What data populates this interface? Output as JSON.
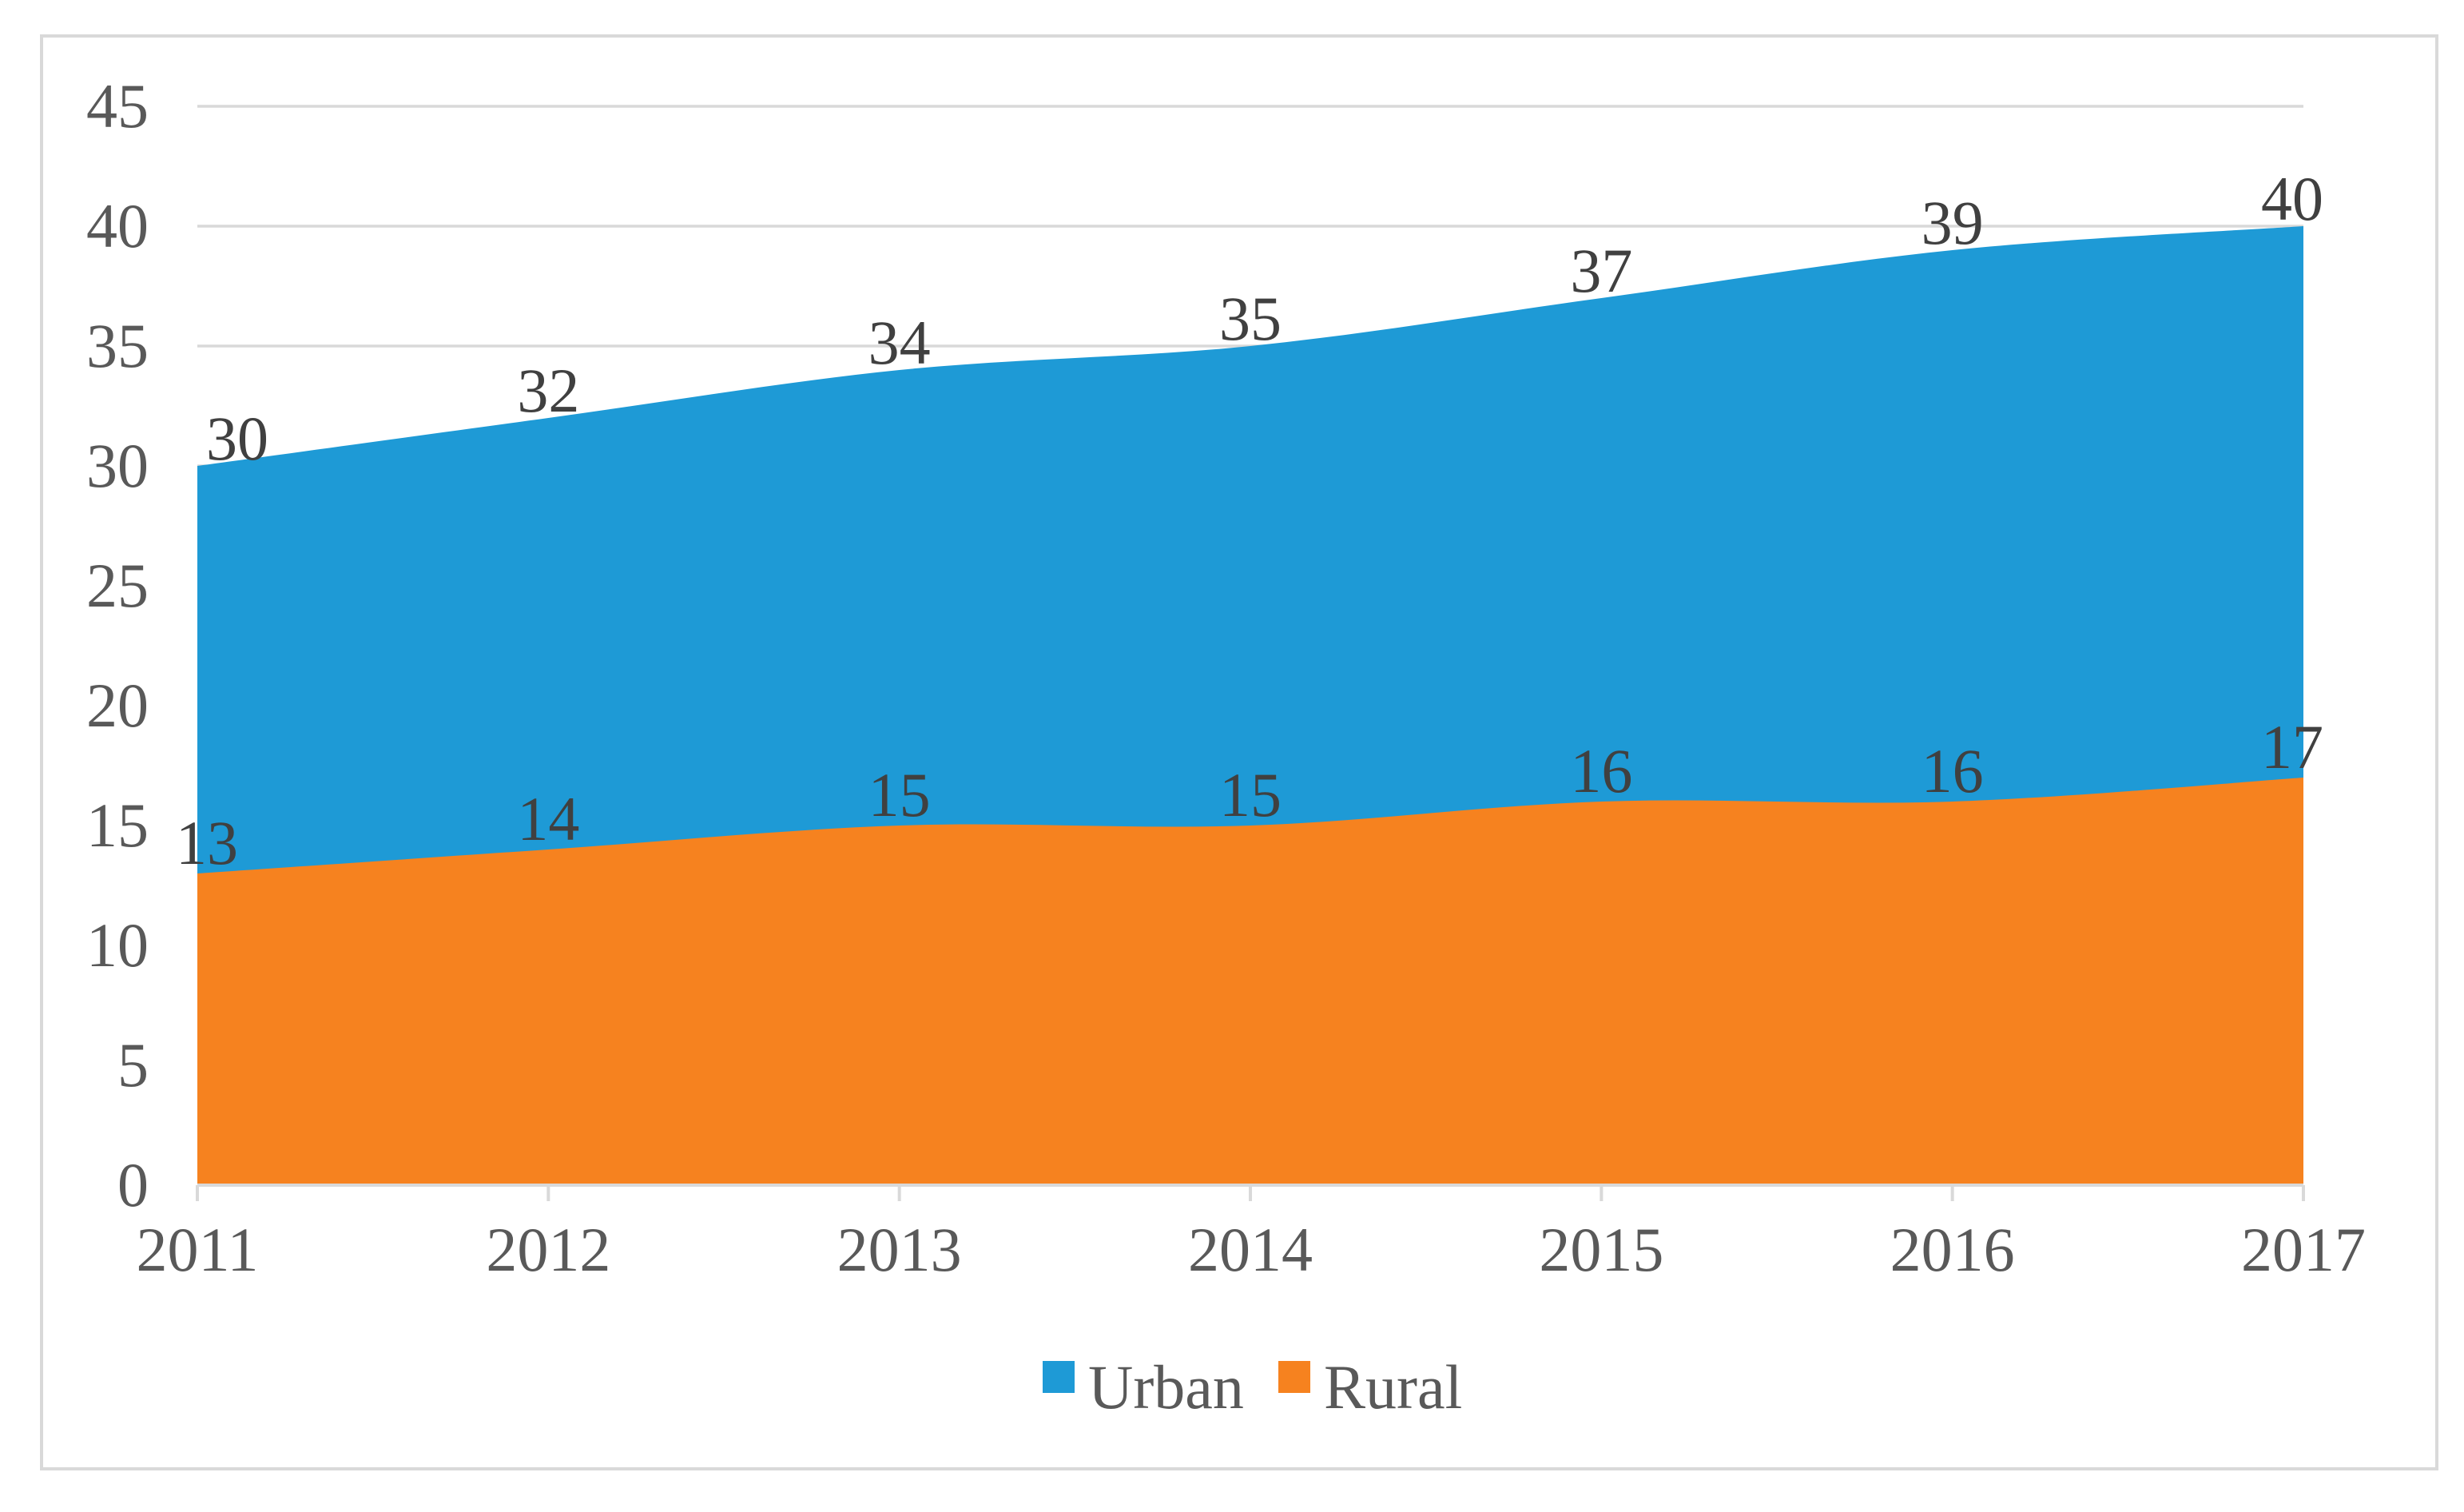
{
  "chart_data": {
    "type": "area",
    "title": "",
    "x": [
      "2011",
      "2012",
      "2013",
      "2014",
      "2015",
      "2016",
      "2017"
    ],
    "series": [
      {
        "name": "Urban",
        "color": "#1E9AD6",
        "values": [
          30,
          32,
          34,
          35,
          37,
          39,
          40
        ],
        "data_labels": [
          "30",
          "32",
          "34",
          "35",
          "37",
          "39",
          "40"
        ]
      },
      {
        "name": "Rural",
        "color": "#F6821F",
        "values": [
          13,
          14,
          15,
          15,
          16,
          16,
          17
        ],
        "data_labels": [
          "13",
          "14",
          "15",
          "15",
          "16",
          "16",
          "17"
        ]
      }
    ],
    "stacked": false,
    "smoothed_lines": true,
    "grid": true,
    "legend_position": "bottom",
    "y_axis": {
      "min": 0,
      "max": 45,
      "step": 5,
      "tick_labels": [
        "0",
        "5",
        "10",
        "15",
        "20",
        "25",
        "30",
        "35",
        "40",
        "45"
      ]
    },
    "x_axis": {
      "tick_labels": [
        "2011",
        "2012",
        "2013",
        "2014",
        "2015",
        "2016",
        "2017"
      ]
    }
  },
  "colors": {
    "series_urban": "#1E9AD6",
    "series_rural": "#F6821F",
    "gridline": "#d9d9d9",
    "axis_line": "#d9d9d9",
    "chart_border": "#d9d9d9",
    "axis_label_text": "#595959",
    "data_label_text": "#404040",
    "legend_text": "#595959",
    "background": "#ffffff"
  }
}
